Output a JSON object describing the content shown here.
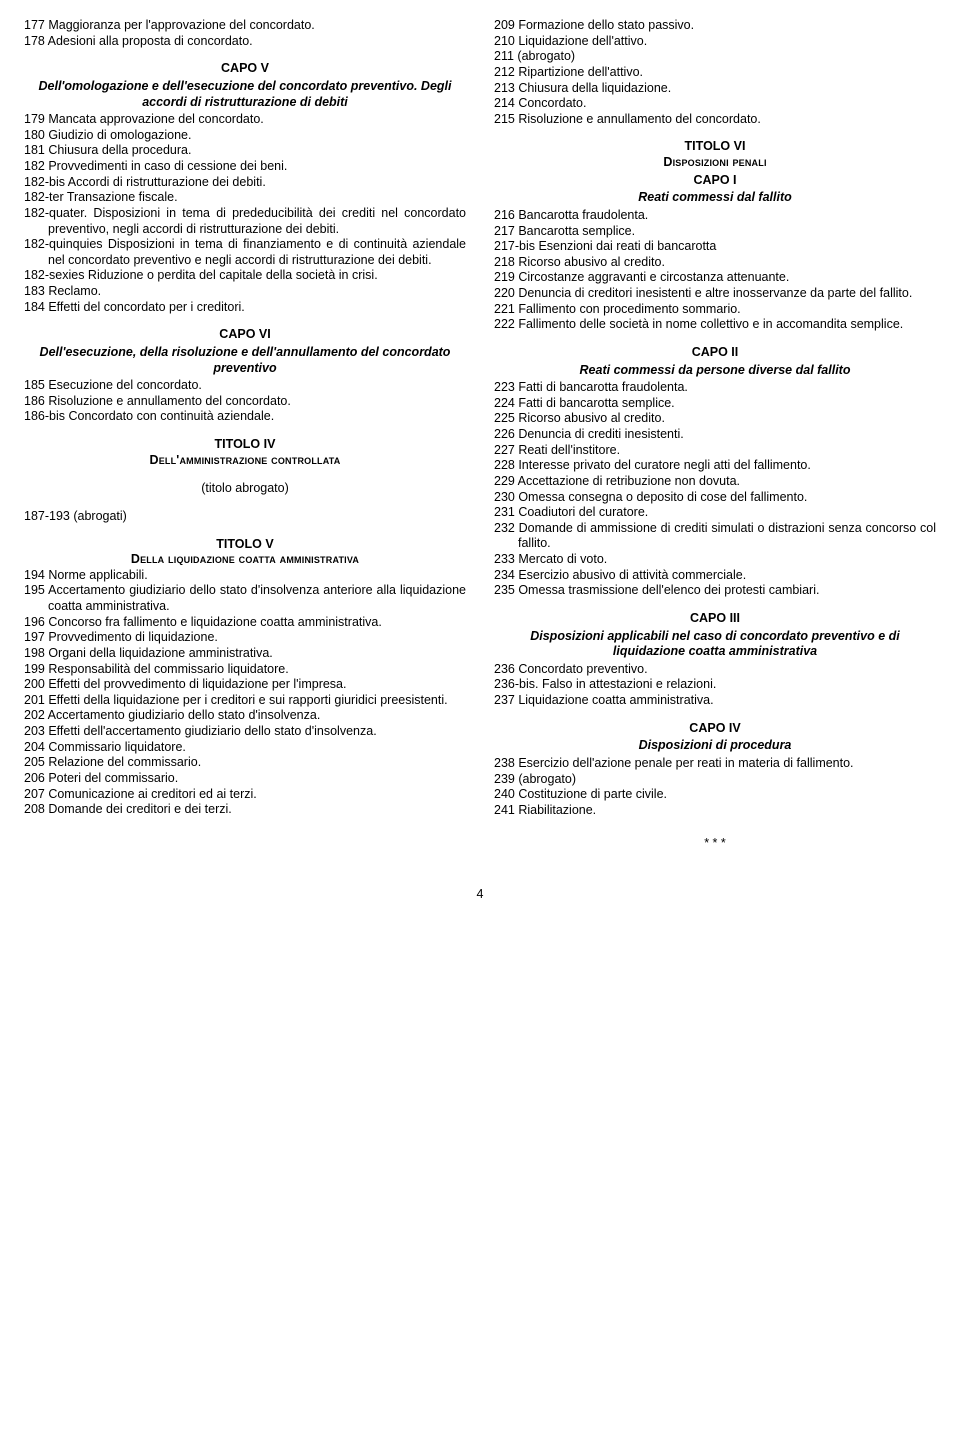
{
  "left": {
    "items1": [
      {
        "t": "177 Maggioranza per l'approvazione del concordato."
      },
      {
        "t": "178 Adesioni alla proposta di concordato."
      }
    ],
    "capoV": {
      "h1": "CAPO V",
      "h2": "Dell'omologazione e dell'esecuzione del concordato preventivo. Degli accordi di ristrutturazione di debiti"
    },
    "items2": [
      {
        "t": "179 Mancata approvazione del concordato."
      },
      {
        "t": "180 Giudizio di omologazione."
      },
      {
        "t": "181 Chiusura della procedura."
      },
      {
        "t": "182 Provvedimenti in caso di cessione dei beni."
      },
      {
        "t": "182-bis Accordi di ristrutturazione dei debiti."
      },
      {
        "t": "182-ter Transazione fiscale."
      },
      {
        "t": "182-quater. Disposizioni in tema di prededucibilità dei crediti nel concordato preventivo, negli accordi di ristrutturazione dei debiti."
      },
      {
        "t": "182-quinquies Disposizioni in tema di finanziamento e di continuità aziendale nel concordato preventivo e negli accordi di ristrutturazione dei debiti."
      },
      {
        "t": "182-sexies Riduzione o perdita del capitale della società in crisi."
      },
      {
        "t": "183 Reclamo."
      },
      {
        "t": "184 Effetti del concordato per i creditori."
      }
    ],
    "capoVI": {
      "h1": "CAPO VI",
      "h2": "Dell'esecuzione, della risoluzione e dell'annullamento del concordato preventivo"
    },
    "items3": [
      {
        "t": "185 Esecuzione del concordato."
      },
      {
        "t": "186 Risoluzione e annullamento del concordato."
      },
      {
        "t": "186-bis Concordato con continuità aziendale."
      }
    ],
    "tit4": {
      "t1": "TITOLO IV",
      "t2": "Dell'amministrazione controllata",
      "t3": "(titolo abrogato)"
    },
    "items4": [
      {
        "t": "187-193 (abrogati)"
      }
    ],
    "tit5": {
      "t1": "TITOLO V",
      "t2": "Della liquidazione coatta amministrativa"
    },
    "items5": [
      {
        "t": "194 Norme applicabili."
      },
      {
        "t": "195 Accertamento giudiziario dello stato d'insolvenza anteriore alla liquidazione coatta amministrativa."
      },
      {
        "t": "196 Concorso fra fallimento e liquidazione coatta amministrativa."
      },
      {
        "t": "197 Provvedimento di liquidazione."
      },
      {
        "t": "198 Organi della liquidazione amministrativa."
      },
      {
        "t": "199 Responsabilità del commissario liquidatore."
      },
      {
        "t": "200 Effetti del provvedimento di liquidazione per l'impresa."
      },
      {
        "t": "201 Effetti della liquidazione per i creditori e sui rapporti giuridici preesistenti."
      },
      {
        "t": "202 Accertamento giudiziario dello stato d'insolvenza."
      },
      {
        "t": "203 Effetti dell'accertamento giudiziario dello stato d'insolvenza."
      },
      {
        "t": "204 Commissario liquidatore."
      },
      {
        "t": "205 Relazione del commissario."
      },
      {
        "t": "206 Poteri del commissario."
      },
      {
        "t": "207 Comunicazione ai creditori ed ai terzi."
      },
      {
        "t": "208 Domande dei creditori e dei terzi."
      }
    ]
  },
  "right": {
    "items1": [
      {
        "t": "209 Formazione dello stato passivo."
      },
      {
        "t": "210 Liquidazione dell'attivo."
      },
      {
        "t": "211 (abrogato)"
      },
      {
        "t": "212 Ripartizione dell'attivo."
      },
      {
        "t": "213 Chiusura della liquidazione."
      },
      {
        "t": "214 Concordato."
      },
      {
        "t": "215 Risoluzione e annullamento del concordato."
      }
    ],
    "tit6": {
      "t1": "TITOLO VI",
      "t2": "Disposizioni penali",
      "c1": "CAPO I",
      "c1h": "Reati commessi dal fallito"
    },
    "items2": [
      {
        "t": "216 Bancarotta fraudolenta."
      },
      {
        "t": "217 Bancarotta semplice."
      },
      {
        "t": "217-bis Esenzioni dai reati di bancarotta"
      },
      {
        "t": "218 Ricorso abusivo al credito."
      },
      {
        "t": "219 Circostanze aggravanti e circostanza attenuante."
      },
      {
        "t": "220 Denuncia di creditori inesistenti e altre inosservanze da parte del fallito."
      },
      {
        "t": "221 Fallimento con procedimento sommario."
      },
      {
        "t": "222 Fallimento delle società in nome collettivo e in accomandita semplice."
      }
    ],
    "capoII": {
      "h1": "CAPO II",
      "h2": "Reati commessi da persone diverse dal fallito"
    },
    "items3": [
      {
        "t": "223 Fatti di bancarotta fraudolenta."
      },
      {
        "t": "224 Fatti di bancarotta semplice."
      },
      {
        "t": "225 Ricorso abusivo al credito."
      },
      {
        "t": "226 Denuncia di crediti inesistenti."
      },
      {
        "t": "227 Reati dell'institore."
      },
      {
        "t": "228 Interesse privato del curatore negli atti del fallimento."
      },
      {
        "t": "229 Accettazione di retribuzione non dovuta."
      },
      {
        "t": "230 Omessa consegna o deposito di cose del fallimento."
      },
      {
        "t": "231 Coadiutori del curatore."
      },
      {
        "t": "232 Domande di ammissione di crediti simulati o distrazioni senza concorso col fallito."
      },
      {
        "t": "233 Mercato di voto."
      },
      {
        "t": "234 Esercizio abusivo di attività commerciale."
      },
      {
        "t": "235 Omessa trasmissione dell'elenco dei protesti cambiari."
      }
    ],
    "capoIII": {
      "h1": "CAPO III",
      "h2": "Disposizioni applicabili nel caso di concordato preventivo e di liquidazione coatta amministrativa"
    },
    "items4": [
      {
        "t": "236 Concordato preventivo."
      },
      {
        "t": "236-bis. Falso in attestazioni e relazioni."
      },
      {
        "t": "237 Liquidazione coatta amministrativa."
      }
    ],
    "capoIV": {
      "h1": "CAPO IV",
      "h2": "Disposizioni di procedura"
    },
    "items5": [
      {
        "t": "238 Esercizio dell'azione penale per reati in materia di fallimento."
      },
      {
        "t": "239 (abrogato)"
      },
      {
        "t": "240 Costituzione di parte civile."
      },
      {
        "t": "241 Riabilitazione."
      }
    ],
    "stars": "* * *"
  },
  "pagenum": "4"
}
